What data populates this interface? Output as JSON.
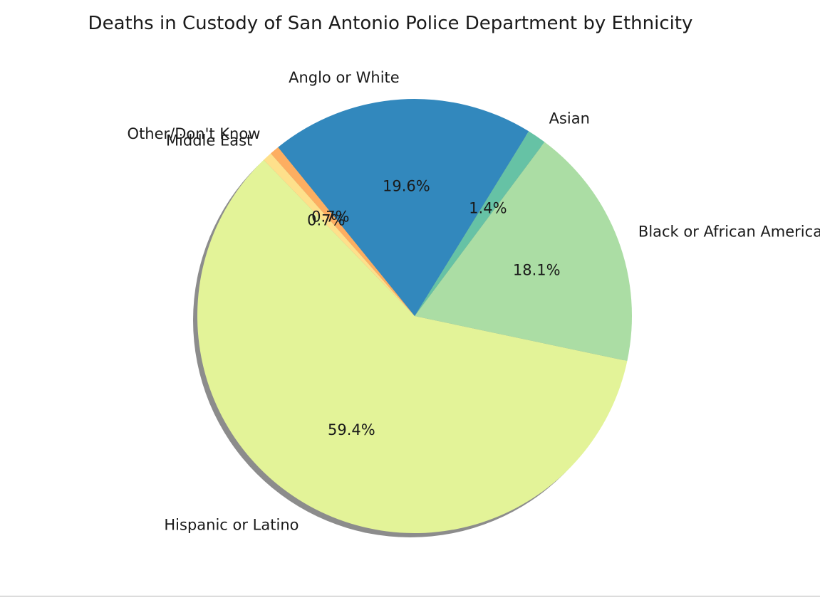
{
  "chart_data": {
    "type": "pie",
    "title": "Deaths in Custody of San Antonio Police Department by Ethnicity",
    "shadow": true,
    "slices": [
      {
        "label": "Hispanic or Latino",
        "value": 59.4,
        "pct_label": "59.4%",
        "color": "#e3f398"
      },
      {
        "label": "Black or African American",
        "value": 18.1,
        "pct_label": "18.1%",
        "color": "#abdda4"
      },
      {
        "label": "Asian",
        "value": 1.4,
        "pct_label": "1.4%",
        "color": "#66c2a5"
      },
      {
        "label": "Anglo or White",
        "value": 19.6,
        "pct_label": "19.6%",
        "color": "#3288bd"
      },
      {
        "label": "Other/Don't Know",
        "value": 0.7,
        "pct_label": "0.7%",
        "color": "#fdae61"
      },
      {
        "label": "Middle East",
        "value": 0.7,
        "pct_label": "0.7%",
        "color": "#fee08b"
      }
    ]
  }
}
